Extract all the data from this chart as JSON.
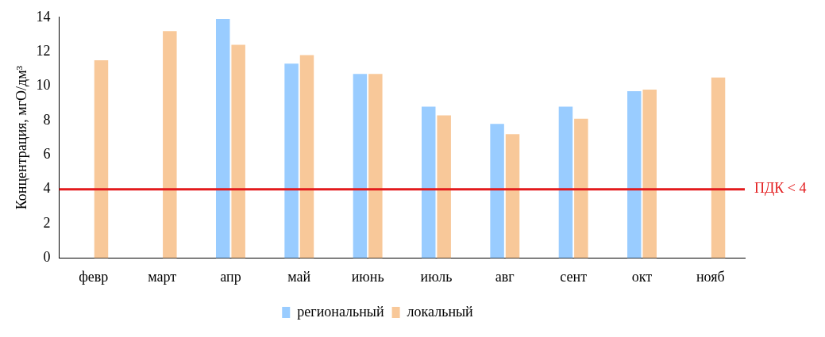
{
  "chart_data": {
    "type": "bar",
    "ylabel": "Концентрация, мгO/дм³",
    "categories": [
      "февр",
      "март",
      "апр",
      "май",
      "июнь",
      "июль",
      "авг",
      "сент",
      "окт",
      "нояб"
    ],
    "series": [
      {
        "name": "региональный",
        "color": "#99ccff",
        "values": [
          null,
          null,
          13.9,
          11.3,
          10.7,
          8.8,
          7.8,
          8.8,
          9.7,
          null
        ]
      },
      {
        "name": "локальный",
        "color": "#f8c899",
        "values": [
          11.5,
          13.2,
          12.4,
          11.8,
          10.7,
          8.3,
          7.2,
          8.1,
          9.8,
          10.5
        ]
      }
    ],
    "ylim": [
      0,
      14
    ],
    "yticks": [
      0,
      2,
      4,
      6,
      8,
      10,
      12,
      14
    ],
    "grid": false,
    "legend": "bottom",
    "ref_lines": [
      {
        "axis": "y",
        "value": 4,
        "label": "ПДК < 4",
        "color": "#e31a1c"
      }
    ]
  }
}
